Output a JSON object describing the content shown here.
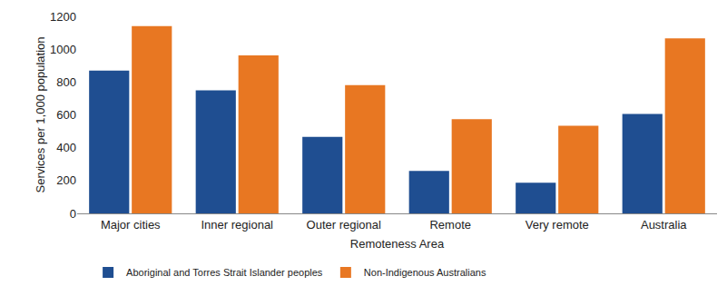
{
  "chart_data": {
    "type": "bar",
    "x_label": "Remoteness Area",
    "y_label": "Services per 1,000 population",
    "categories": [
      "Major cities",
      "Inner regional",
      "Outer regional",
      "Remote",
      "Very remote",
      "Australia"
    ],
    "series": [
      {
        "name": "Aboriginal and Torres Strait Islander peoples",
        "color": "#1F4E91",
        "values": [
          869,
          750,
          466,
          259,
          186,
          605
        ]
      },
      {
        "name": "Non-Indigenous Australians",
        "color": "#E87722",
        "values": [
          1140,
          962,
          781,
          574,
          533,
          1066
        ]
      }
    ],
    "ylim": [
      0,
      1200
    ],
    "yticks": [
      0,
      200,
      400,
      600,
      800,
      1000,
      1200
    ],
    "grid": false,
    "legend": "bottom"
  }
}
